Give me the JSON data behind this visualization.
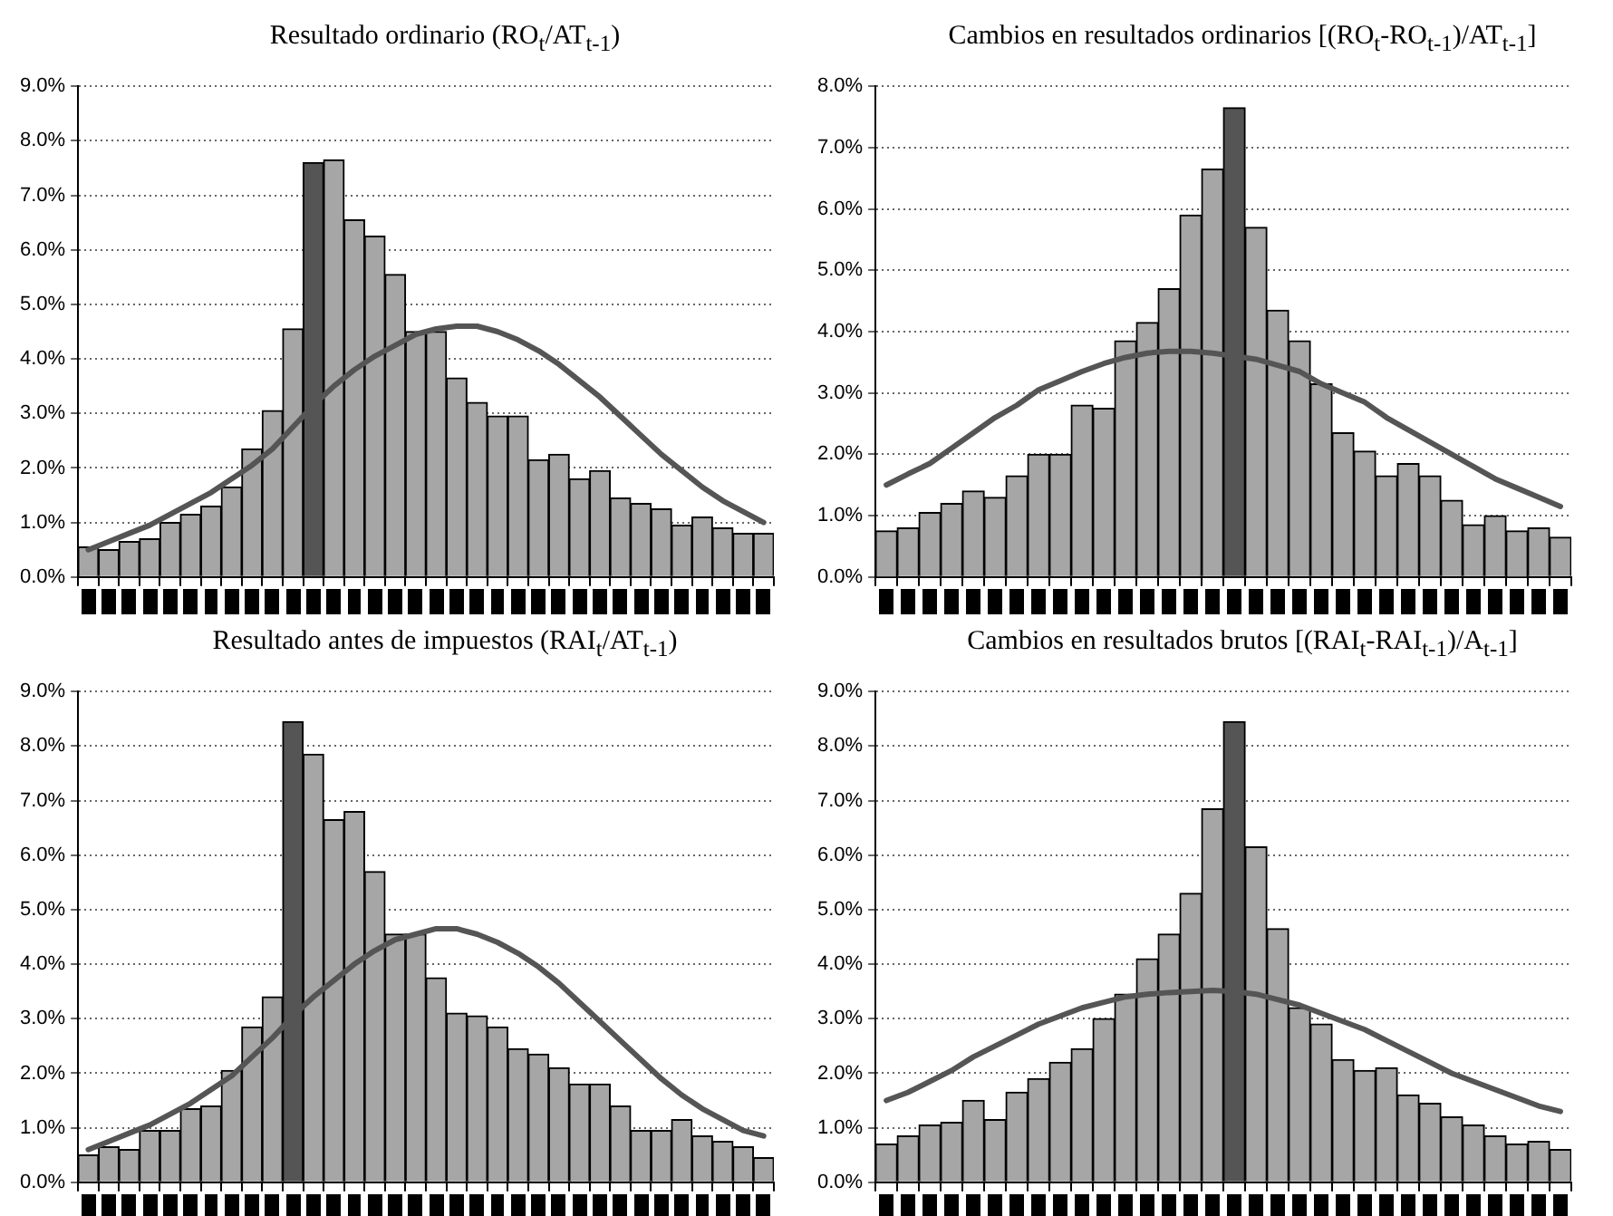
{
  "chart_data": [
    {
      "type": "bar",
      "title": "Resultado ordinario (RO$_{t}$/AT$_{t-1}$)",
      "categories": [
        null,
        null,
        null,
        null,
        null,
        null,
        null,
        null,
        null,
        null,
        null,
        null,
        null,
        null,
        null,
        null,
        null,
        null,
        null,
        null,
        null,
        null,
        null,
        null,
        null,
        null,
        null,
        null,
        null,
        null,
        null,
        null,
        null,
        null
      ],
      "ylim": [
        0,
        9
      ],
      "yticks": [
        {
          "value": 0,
          "label": "0.0%"
        },
        {
          "value": 1,
          "label": "1.0%"
        },
        {
          "value": 2,
          "label": "2.0%"
        },
        {
          "value": 3,
          "label": "3.0%"
        },
        {
          "value": 4,
          "label": "4.0%"
        },
        {
          "value": 5,
          "label": "5.0%"
        },
        {
          "value": 6,
          "label": "6.0%"
        },
        {
          "value": 7,
          "label": "7.0%"
        },
        {
          "value": 8,
          "label": "8.0%"
        },
        {
          "value": 9,
          "label": "9.0%"
        }
      ],
      "grid": "y",
      "legend": false,
      "tick_labels": "y",
      "series": [
        {
          "colors": [
            "#a6a6a6",
            "#a6a6a6",
            "#a6a6a6",
            "#a6a6a6",
            "#a6a6a6",
            "#a6a6a6",
            "#a6a6a6",
            "#a6a6a6",
            "#a6a6a6",
            "#a6a6a6",
            "#a6a6a6",
            "#555555",
            "#a6a6a6",
            "#a6a6a6",
            "#a6a6a6",
            "#a6a6a6",
            "#a6a6a6",
            "#a6a6a6",
            "#a6a6a6",
            "#a6a6a6",
            "#a6a6a6",
            "#a6a6a6",
            "#a6a6a6",
            "#a6a6a6",
            "#a6a6a6",
            "#a6a6a6",
            "#a6a6a6",
            "#a6a6a6",
            "#a6a6a6",
            "#a6a6a6",
            "#a6a6a6",
            "#a6a6a6",
            "#a6a6a6",
            "#a6a6a6"
          ],
          "values": [
            0.55,
            0.5,
            0.65,
            0.7,
            1.0,
            1.15,
            1.3,
            1.65,
            2.35,
            3.05,
            4.55,
            7.6,
            7.65,
            6.55,
            6.25,
            5.55,
            4.5,
            4.5,
            3.65,
            3.2,
            2.95,
            2.95,
            2.15,
            2.25,
            1.8,
            1.95,
            1.45,
            1.35,
            1.25,
            0.95,
            1.1,
            0.9,
            0.8,
            0.8
          ]
        },
        {
          "type": "line",
          "color": "#555555",
          "marker": "none",
          "line_style": "solid",
          "values": [
            0.5,
            0.65,
            0.8,
            0.95,
            1.15,
            1.35,
            1.55,
            1.8,
            2.05,
            2.35,
            2.75,
            3.15,
            3.5,
            3.8,
            4.05,
            4.25,
            4.45,
            4.55,
            4.6,
            4.6,
            4.5,
            4.35,
            4.15,
            3.9,
            3.6,
            3.3,
            2.95,
            2.6,
            2.25,
            1.95,
            1.65,
            1.4,
            1.2,
            1.0
          ]
        }
      ]
    },
    {
      "type": "bar",
      "title": "Cambios en resultados ordinarios [(RO$_{t}$-RO$_{t-1}$)/AT$_{t-1}$]",
      "categories": [
        null,
        null,
        null,
        null,
        null,
        null,
        null,
        null,
        null,
        null,
        null,
        null,
        null,
        null,
        null,
        null,
        null,
        null,
        null,
        null,
        null,
        null,
        null,
        null,
        null,
        null,
        null,
        null,
        null,
        null,
        null,
        null
      ],
      "ylim": [
        0,
        8
      ],
      "yticks": [
        {
          "value": 0,
          "label": "0.0%"
        },
        {
          "value": 1,
          "label": "1.0%"
        },
        {
          "value": 2,
          "label": "2.0%"
        },
        {
          "value": 3,
          "label": "3.0%"
        },
        {
          "value": 4,
          "label": "4.0%"
        },
        {
          "value": 5,
          "label": "5.0%"
        },
        {
          "value": 6,
          "label": "6.0%"
        },
        {
          "value": 7,
          "label": "7.0%"
        },
        {
          "value": 8,
          "label": "8.0%"
        }
      ],
      "grid": "y",
      "legend": false,
      "tick_labels": "y",
      "series": [
        {
          "colors": [
            "#a6a6a6",
            "#a6a6a6",
            "#a6a6a6",
            "#a6a6a6",
            "#a6a6a6",
            "#a6a6a6",
            "#a6a6a6",
            "#a6a6a6",
            "#a6a6a6",
            "#a6a6a6",
            "#a6a6a6",
            "#a6a6a6",
            "#a6a6a6",
            "#a6a6a6",
            "#a6a6a6",
            "#a6a6a6",
            "#555555",
            "#a6a6a6",
            "#a6a6a6",
            "#a6a6a6",
            "#a6a6a6",
            "#a6a6a6",
            "#a6a6a6",
            "#a6a6a6",
            "#a6a6a6",
            "#a6a6a6",
            "#a6a6a6",
            "#a6a6a6",
            "#a6a6a6",
            "#a6a6a6",
            "#a6a6a6",
            "#a6a6a6"
          ],
          "values": [
            0.75,
            0.8,
            1.05,
            1.2,
            1.4,
            1.3,
            1.65,
            2.0,
            2.0,
            2.8,
            2.75,
            3.85,
            4.15,
            4.7,
            5.9,
            6.65,
            7.65,
            5.7,
            4.35,
            3.85,
            3.15,
            2.35,
            2.05,
            1.65,
            1.85,
            1.65,
            1.25,
            0.85,
            1.0,
            0.75,
            0.8,
            0.65
          ]
        },
        {
          "type": "line",
          "color": "#555555",
          "marker": "none",
          "line_style": "solid",
          "values": [
            1.5,
            1.68,
            1.85,
            2.1,
            2.35,
            2.6,
            2.8,
            3.05,
            3.2,
            3.35,
            3.48,
            3.58,
            3.65,
            3.68,
            3.68,
            3.65,
            3.6,
            3.55,
            3.45,
            3.35,
            3.15,
            3.0,
            2.85,
            2.6,
            2.4,
            2.2,
            2.0,
            1.8,
            1.6,
            1.45,
            1.3,
            1.15
          ]
        }
      ]
    },
    {
      "type": "bar",
      "title": "Resultado antes de impuestos (RAI$_{t}$/AT$_{t-1}$)",
      "categories": [
        null,
        null,
        null,
        null,
        null,
        null,
        null,
        null,
        null,
        null,
        null,
        null,
        null,
        null,
        null,
        null,
        null,
        null,
        null,
        null,
        null,
        null,
        null,
        null,
        null,
        null,
        null,
        null,
        null,
        null,
        null,
        null,
        null,
        null
      ],
      "ylim": [
        0,
        9
      ],
      "yticks": [
        {
          "value": 0,
          "label": "0.0%"
        },
        {
          "value": 1,
          "label": "1.0%"
        },
        {
          "value": 2,
          "label": "2.0%"
        },
        {
          "value": 3,
          "label": "3.0%"
        },
        {
          "value": 4,
          "label": "4.0%"
        },
        {
          "value": 5,
          "label": "5.0%"
        },
        {
          "value": 6,
          "label": "6.0%"
        },
        {
          "value": 7,
          "label": "7.0%"
        },
        {
          "value": 8,
          "label": "8.0%"
        },
        {
          "value": 9,
          "label": "9.0%"
        }
      ],
      "grid": "y",
      "legend": false,
      "tick_labels": "y",
      "series": [
        {
          "colors": [
            "#a6a6a6",
            "#a6a6a6",
            "#a6a6a6",
            "#a6a6a6",
            "#a6a6a6",
            "#a6a6a6",
            "#a6a6a6",
            "#a6a6a6",
            "#a6a6a6",
            "#a6a6a6",
            "#555555",
            "#a6a6a6",
            "#a6a6a6",
            "#a6a6a6",
            "#a6a6a6",
            "#a6a6a6",
            "#a6a6a6",
            "#a6a6a6",
            "#a6a6a6",
            "#a6a6a6",
            "#a6a6a6",
            "#a6a6a6",
            "#a6a6a6",
            "#a6a6a6",
            "#a6a6a6",
            "#a6a6a6",
            "#a6a6a6",
            "#a6a6a6",
            "#a6a6a6",
            "#a6a6a6",
            "#a6a6a6",
            "#a6a6a6",
            "#a6a6a6",
            "#a6a6a6"
          ],
          "values": [
            0.5,
            0.65,
            0.6,
            0.95,
            0.95,
            1.35,
            1.4,
            2.05,
            2.85,
            3.4,
            8.45,
            7.85,
            6.65,
            6.8,
            5.7,
            4.55,
            4.55,
            3.75,
            3.1,
            3.05,
            2.85,
            2.45,
            2.35,
            2.1,
            1.8,
            1.8,
            1.4,
            0.95,
            0.95,
            1.15,
            0.85,
            0.75,
            0.65,
            0.45
          ]
        },
        {
          "type": "line",
          "color": "#555555",
          "marker": "none",
          "line_style": "solid",
          "values": [
            0.6,
            0.75,
            0.9,
            1.05,
            1.25,
            1.45,
            1.7,
            1.95,
            2.3,
            2.65,
            3.05,
            3.4,
            3.7,
            4.0,
            4.25,
            4.45,
            4.55,
            4.65,
            4.65,
            4.55,
            4.4,
            4.2,
            3.95,
            3.65,
            3.3,
            2.95,
            2.6,
            2.25,
            1.9,
            1.6,
            1.35,
            1.15,
            0.95,
            0.85
          ]
        }
      ]
    },
    {
      "type": "bar",
      "title": "Cambios en resultados brutos [(RAI$_{t}$-RAI$_{t-1}$)/A$_{t-1}$]",
      "categories": [
        null,
        null,
        null,
        null,
        null,
        null,
        null,
        null,
        null,
        null,
        null,
        null,
        null,
        null,
        null,
        null,
        null,
        null,
        null,
        null,
        null,
        null,
        null,
        null,
        null,
        null,
        null,
        null,
        null,
        null,
        null,
        null
      ],
      "ylim": [
        0,
        9
      ],
      "yticks": [
        {
          "value": 0,
          "label": "0.0%"
        },
        {
          "value": 1,
          "label": "1.0%"
        },
        {
          "value": 2,
          "label": "2.0%"
        },
        {
          "value": 3,
          "label": "3.0%"
        },
        {
          "value": 4,
          "label": "4.0%"
        },
        {
          "value": 5,
          "label": "5.0%"
        },
        {
          "value": 6,
          "label": "6.0%"
        },
        {
          "value": 7,
          "label": "7.0%"
        },
        {
          "value": 8,
          "label": "8.0%"
        },
        {
          "value": 9,
          "label": "9.0%"
        }
      ],
      "grid": "y",
      "legend": false,
      "tick_labels": "y",
      "series": [
        {
          "colors": [
            "#a6a6a6",
            "#a6a6a6",
            "#a6a6a6",
            "#a6a6a6",
            "#a6a6a6",
            "#a6a6a6",
            "#a6a6a6",
            "#a6a6a6",
            "#a6a6a6",
            "#a6a6a6",
            "#a6a6a6",
            "#a6a6a6",
            "#a6a6a6",
            "#a6a6a6",
            "#a6a6a6",
            "#a6a6a6",
            "#555555",
            "#a6a6a6",
            "#a6a6a6",
            "#a6a6a6",
            "#a6a6a6",
            "#a6a6a6",
            "#a6a6a6",
            "#a6a6a6",
            "#a6a6a6",
            "#a6a6a6",
            "#a6a6a6",
            "#a6a6a6",
            "#a6a6a6",
            "#a6a6a6",
            "#a6a6a6",
            "#a6a6a6"
          ],
          "values": [
            0.7,
            0.85,
            1.05,
            1.1,
            1.5,
            1.15,
            1.65,
            1.9,
            2.2,
            2.45,
            3.0,
            3.45,
            4.1,
            4.55,
            5.3,
            6.85,
            8.45,
            6.15,
            4.65,
            3.2,
            2.9,
            2.25,
            2.05,
            2.1,
            1.6,
            1.45,
            1.2,
            1.05,
            0.85,
            0.7,
            0.75,
            0.6
          ]
        },
        {
          "type": "line",
          "color": "#555555",
          "marker": "none",
          "line_style": "solid",
          "values": [
            1.5,
            1.65,
            1.85,
            2.05,
            2.3,
            2.5,
            2.7,
            2.9,
            3.05,
            3.2,
            3.3,
            3.4,
            3.45,
            3.48,
            3.5,
            3.52,
            3.5,
            3.45,
            3.35,
            3.25,
            3.1,
            2.95,
            2.8,
            2.6,
            2.4,
            2.2,
            2.0,
            1.85,
            1.7,
            1.55,
            1.4,
            1.3
          ]
        }
      ]
    }
  ]
}
